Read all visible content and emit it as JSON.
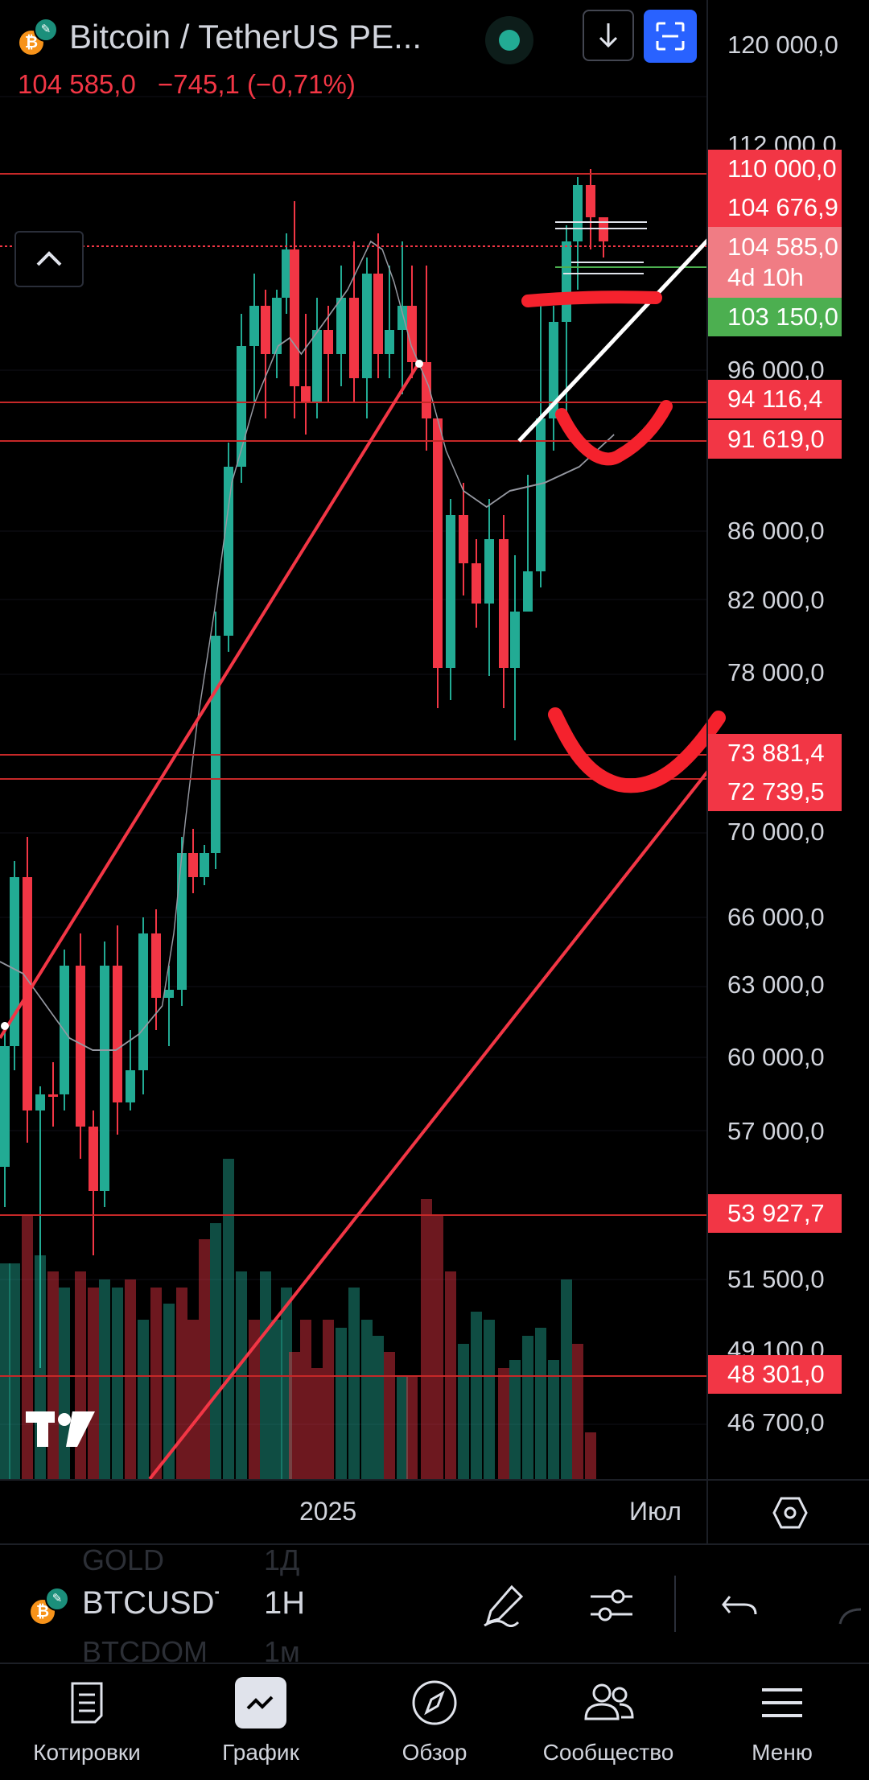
{
  "header": {
    "coin_glyph": "₿",
    "badge_glyph": "✎",
    "title": "Bitcoin / TetherUS PE...",
    "last_price": "104 585,0",
    "change": "−745,1 (−0,71%)",
    "market_status_color": "#22ab94"
  },
  "price_scale": {
    "ticks": [
      "120 000,0",
      "112 000,0",
      "96 000,0",
      "86 000,0",
      "82 000,0",
      "78 000,0",
      "70 000,0",
      "66 000,0",
      "63 000,0",
      "60 000,0",
      "57 000,0",
      "51 500,0",
      "49 100,0",
      "46 700,0"
    ],
    "labels": {
      "l110000": "110 000,0",
      "l104676": "104 676,9",
      "last_price": "104 585,0",
      "countdown": "4d 10h",
      "l103150": "103 150,0",
      "l94116": "94 116,4",
      "l91619": "91 619,0",
      "l73881": "73 881,4",
      "l72739": "72 739,5",
      "l53927": "53 927,7",
      "l48301": "48 301,0"
    }
  },
  "time_axis": {
    "year_label": "2025",
    "month_label": "Июл"
  },
  "symbol_bar": {
    "symbol": "BTCUSDT",
    "interval": "1H",
    "ghost_above_symbol": "GOLD",
    "ghost_above_interval": "1Д",
    "ghost_below_symbol": "BTCDOM",
    "ghost_below_interval": "1м"
  },
  "nav": {
    "quotes": "Котировки",
    "chart": "График",
    "explore": "Обзор",
    "community": "Сообщество",
    "menu": "Меню"
  },
  "logo_text": "TV",
  "colors": {
    "up": "#22ab94",
    "down": "#f23645",
    "accent": "#2962ff",
    "green_label": "#4caf50"
  }
}
